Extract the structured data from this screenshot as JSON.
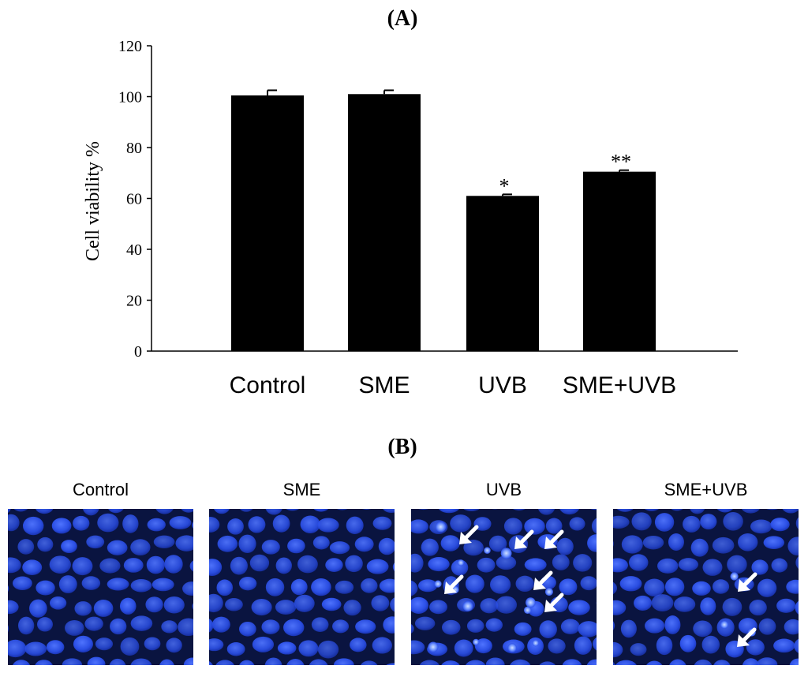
{
  "panel_a_label": "(A)",
  "panel_b_label": "(B)",
  "chart_data": {
    "type": "bar",
    "title": "",
    "xlabel": "",
    "ylabel": "Cell viability %",
    "ylim": [
      0,
      120
    ],
    "yticks": [
      0,
      20,
      40,
      60,
      80,
      100,
      120
    ],
    "categories": [
      "Control",
      "SME",
      "UVB",
      "SME+UVB"
    ],
    "values": [
      100.5,
      101,
      61,
      70.5
    ],
    "errors": [
      2,
      1.5,
      0.6,
      0.6
    ],
    "annotations": [
      "",
      "",
      "*",
      "**"
    ],
    "bar_color": "#000000",
    "grid": false
  },
  "micrographs": {
    "labels": [
      "Control",
      "SME",
      "UVB",
      "SME+UVB"
    ],
    "stain_color": "#2a4fe0",
    "background_color": "#0a1440",
    "arrow_color": "#ffffff",
    "arrow_counts": [
      0,
      0,
      6,
      2
    ]
  }
}
